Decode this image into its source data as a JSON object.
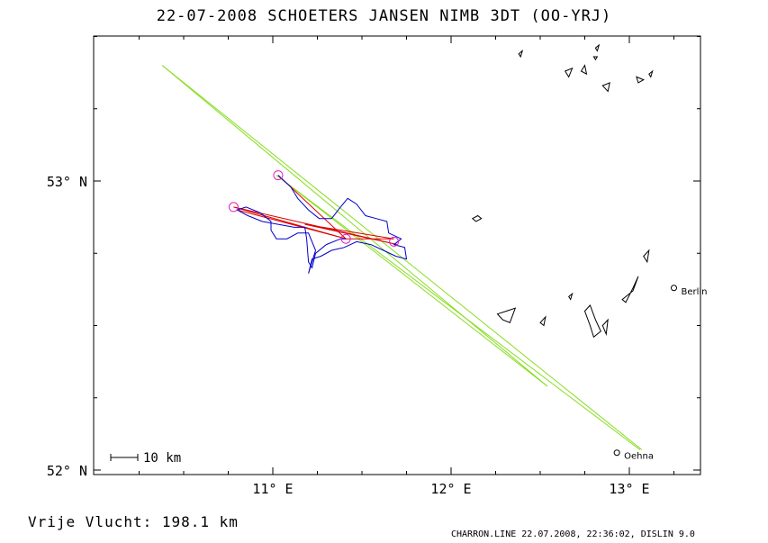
{
  "title": "22-07-2008    SCHOETERS JANSEN    NIMB 3DT (OO-YRJ)",
  "free_flight": {
    "label": "Vrije Vlucht:",
    "value": "198.1 km"
  },
  "footer": "CHARRON.LINE 22.07.2008, 22:36:02, DISLIN 9.0",
  "scale_bar": {
    "label": "10 km"
  },
  "axes": {
    "lon_ticks": [
      {
        "value": 11,
        "label": "11° E"
      },
      {
        "value": 12,
        "label": "12° E"
      },
      {
        "value": 13,
        "label": "13° E"
      }
    ],
    "lat_ticks": [
      {
        "value": 53,
        "label": "53° N"
      },
      {
        "value": 52,
        "label": "52° N"
      }
    ]
  },
  "places": [
    {
      "name": "Berlin",
      "lon": 13.25,
      "lat": 52.63
    },
    {
      "name": "Oehna",
      "lon": 12.93,
      "lat": 52.06
    }
  ],
  "colors": {
    "frame": "#000000",
    "track": "#0000cc",
    "task": "#dd0000",
    "turnpoint": "#e020c0",
    "airspace": "#88dd22",
    "water": "#000000"
  },
  "turnpoints": [
    {
      "lon": 11.03,
      "lat": 53.02
    },
    {
      "lon": 10.78,
      "lat": 52.91
    },
    {
      "lon": 11.41,
      "lat": 52.8
    },
    {
      "lon": 11.68,
      "lat": 52.79
    }
  ],
  "task_path": [
    [
      11.03,
      53.02
    ],
    [
      11.41,
      52.8
    ],
    [
      10.78,
      52.91
    ],
    [
      11.7,
      52.78
    ],
    [
      11.18,
      52.85
    ],
    [
      11.68,
      52.8
    ],
    [
      11.41,
      52.8
    ],
    [
      10.8,
      52.9
    ]
  ],
  "track_path": [
    [
      11.03,
      53.02
    ],
    [
      11.1,
      52.98
    ],
    [
      11.14,
      52.94
    ],
    [
      11.2,
      52.9
    ],
    [
      11.26,
      52.87
    ],
    [
      11.33,
      52.87
    ],
    [
      11.38,
      52.91
    ],
    [
      11.42,
      52.94
    ],
    [
      11.47,
      52.92
    ],
    [
      11.52,
      52.88
    ],
    [
      11.58,
      52.87
    ],
    [
      11.64,
      52.86
    ],
    [
      11.65,
      52.82
    ],
    [
      11.72,
      52.8
    ],
    [
      11.68,
      52.78
    ],
    [
      11.74,
      52.77
    ],
    [
      11.75,
      52.73
    ],
    [
      11.69,
      52.74
    ],
    [
      11.62,
      52.76
    ],
    [
      11.55,
      52.78
    ],
    [
      11.47,
      52.79
    ],
    [
      11.4,
      52.77
    ],
    [
      11.33,
      52.76
    ],
    [
      11.27,
      52.74
    ],
    [
      11.22,
      52.73
    ],
    [
      11.2,
      52.68
    ],
    [
      11.24,
      52.76
    ],
    [
      11.2,
      52.82
    ],
    [
      11.14,
      52.82
    ],
    [
      11.08,
      52.8
    ],
    [
      11.02,
      52.8
    ],
    [
      10.99,
      52.83
    ],
    [
      10.99,
      52.86
    ],
    [
      10.93,
      52.89
    ],
    [
      10.85,
      52.91
    ],
    [
      10.8,
      52.9
    ],
    [
      10.86,
      52.88
    ],
    [
      10.94,
      52.86
    ],
    [
      11.03,
      52.85
    ],
    [
      11.12,
      52.84
    ],
    [
      11.18,
      52.84
    ],
    [
      11.19,
      52.8
    ],
    [
      11.2,
      52.72
    ],
    [
      11.22,
      52.7
    ],
    [
      11.24,
      52.75
    ],
    [
      11.3,
      52.78
    ],
    [
      11.38,
      52.8
    ],
    [
      11.41,
      52.8
    ]
  ],
  "airspace_lines": [
    [
      [
        10.38,
        53.4
      ],
      [
        13.07,
        52.07
      ]
    ],
    [
      [
        10.38,
        53.4
      ],
      [
        12.54,
        52.29
      ]
    ],
    [
      [
        11.02,
        53.02
      ],
      [
        13.06,
        52.07
      ]
    ],
    [
      [
        11.02,
        53.02
      ],
      [
        12.54,
        52.29
      ]
    ]
  ],
  "lakes": [
    [
      [
        12.12,
        52.87
      ],
      [
        12.15,
        52.88
      ],
      [
        12.17,
        52.87
      ],
      [
        12.14,
        52.86
      ],
      [
        12.12,
        52.87
      ]
    ],
    [
      [
        12.26,
        52.54
      ],
      [
        12.31,
        52.55
      ],
      [
        12.36,
        52.56
      ],
      [
        12.33,
        52.51
      ],
      [
        12.29,
        52.52
      ],
      [
        12.26,
        52.54
      ]
    ],
    [
      [
        12.5,
        52.51
      ],
      [
        12.53,
        52.53
      ],
      [
        12.52,
        52.5
      ],
      [
        12.5,
        52.51
      ]
    ],
    [
      [
        12.66,
        52.6
      ],
      [
        12.68,
        52.61
      ],
      [
        12.67,
        52.59
      ],
      [
        12.66,
        52.6
      ]
    ],
    [
      [
        12.75,
        52.55
      ],
      [
        12.78,
        52.57
      ],
      [
        12.81,
        52.52
      ],
      [
        12.84,
        52.48
      ],
      [
        12.8,
        52.46
      ],
      [
        12.78,
        52.5
      ],
      [
        12.75,
        52.55
      ]
    ],
    [
      [
        12.85,
        52.5
      ],
      [
        12.88,
        52.52
      ],
      [
        12.87,
        52.47
      ],
      [
        12.85,
        52.5
      ]
    ],
    [
      [
        12.96,
        52.59
      ],
      [
        13.02,
        52.62
      ],
      [
        13.05,
        52.67
      ],
      [
        13.02,
        52.63
      ],
      [
        12.98,
        52.58
      ],
      [
        12.96,
        52.59
      ]
    ],
    [
      [
        13.08,
        52.74
      ],
      [
        13.11,
        52.76
      ],
      [
        13.1,
        52.72
      ],
      [
        13.08,
        52.74
      ]
    ],
    [
      [
        12.64,
        53.38
      ],
      [
        12.68,
        53.39
      ],
      [
        12.66,
        53.36
      ],
      [
        12.64,
        53.38
      ]
    ],
    [
      [
        12.73,
        53.38
      ],
      [
        12.75,
        53.4
      ],
      [
        12.76,
        53.37
      ],
      [
        12.73,
        53.38
      ]
    ],
    [
      [
        12.85,
        53.33
      ],
      [
        12.89,
        53.34
      ],
      [
        12.88,
        53.31
      ],
      [
        12.85,
        53.33
      ]
    ],
    [
      [
        13.04,
        53.36
      ],
      [
        13.08,
        53.35
      ],
      [
        13.05,
        53.34
      ],
      [
        13.04,
        53.36
      ]
    ],
    [
      [
        13.11,
        53.37
      ],
      [
        13.13,
        53.38
      ],
      [
        13.12,
        53.36
      ],
      [
        13.11,
        53.37
      ]
    ],
    [
      [
        12.8,
        53.43
      ],
      [
        12.82,
        53.43
      ],
      [
        12.81,
        53.42
      ],
      [
        12.8,
        53.43
      ]
    ],
    [
      [
        12.81,
        53.46
      ],
      [
        12.83,
        53.47
      ],
      [
        12.82,
        53.45
      ],
      [
        12.81,
        53.46
      ]
    ],
    [
      [
        12.38,
        53.44
      ],
      [
        12.4,
        53.45
      ],
      [
        12.39,
        53.43
      ],
      [
        12.38,
        53.44
      ]
    ]
  ]
}
